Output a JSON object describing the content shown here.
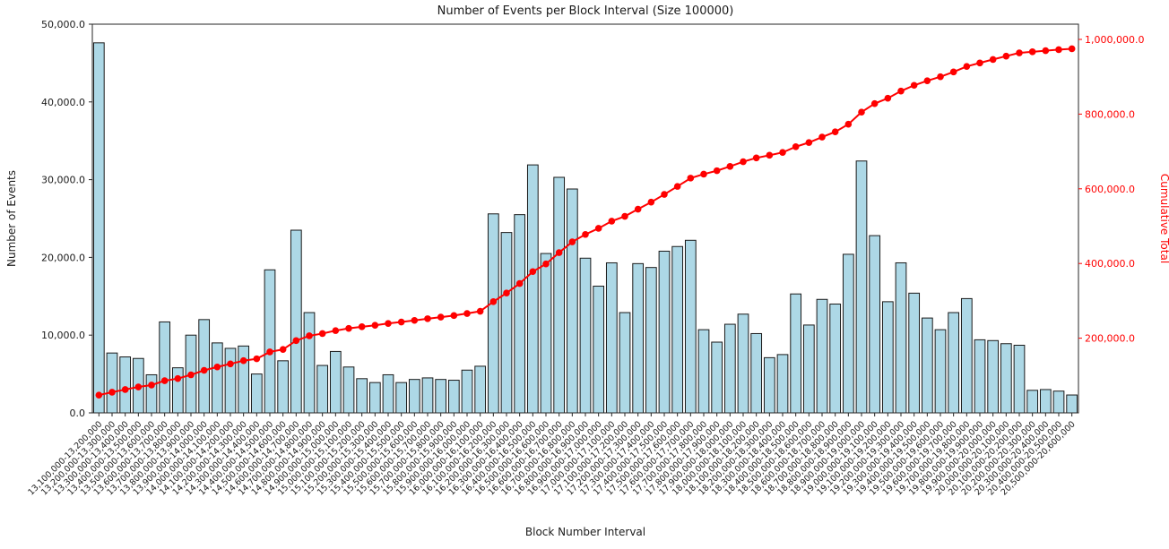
{
  "page": {
    "background": "#ffffff"
  },
  "chart_data": {
    "type": "bar",
    "title": "Number of Events per Block Interval (Size 100000)",
    "xlabel": "Block Number Interval",
    "ylabel_left": "Number of Events",
    "ylabel_right": "Cumulative Total",
    "grid": false,
    "legend": "none",
    "bar_color": "#add8e6",
    "bar_edge_color": "#1a1a1a",
    "line_color": "#ff0000",
    "axes": {
      "left": {
        "range": [
          0,
          50000
        ],
        "tick_values": [
          0,
          10000,
          20000,
          30000,
          40000,
          50000
        ],
        "tick_labels": [
          "0.0",
          "10,000.0",
          "20,000.0",
          "30,000.0",
          "40,000.0",
          "50,000.0"
        ],
        "color": "#1a1a1a"
      },
      "right": {
        "range": [
          0,
          1000000
        ],
        "tick_values": [
          200000,
          400000,
          600000,
          800000,
          1000000
        ],
        "tick_labels": [
          "200,000.0",
          "400,000.0",
          "600,000.0",
          "800,000.0",
          "1,000,000.0"
        ],
        "color": "#ff0000"
      },
      "x_tick_rotation": 45
    },
    "categories": [
      "13,100,000-13,200,000",
      "13,200,000-13,300,000",
      "13,300,000-13,400,000",
      "13,400,000-13,500,000",
      "13,500,000-13,600,000",
      "13,600,000-13,700,000",
      "13,700,000-13,800,000",
      "13,800,000-13,900,000",
      "13,900,000-14,000,000",
      "14,000,000-14,100,000",
      "14,100,000-14,200,000",
      "14,200,000-14,300,000",
      "14,300,000-14,400,000",
      "14,400,000-14,500,000",
      "14,500,000-14,600,000",
      "14,600,000-14,700,000",
      "14,700,000-14,800,000",
      "14,800,000-14,900,000",
      "14,900,000-15,000,000",
      "15,000,000-15,100,000",
      "15,100,000-15,200,000",
      "15,200,000-15,300,000",
      "15,300,000-15,400,000",
      "15,400,000-15,500,000",
      "15,500,000-15,600,000",
      "15,600,000-15,700,000",
      "15,700,000-15,800,000",
      "15,800,000-15,900,000",
      "15,900,000-16,000,000",
      "16,000,000-16,100,000",
      "16,100,000-16,200,000",
      "16,200,000-16,300,000",
      "16,300,000-16,400,000",
      "16,400,000-16,500,000",
      "16,500,000-16,600,000",
      "16,600,000-16,700,000",
      "16,700,000-16,800,000",
      "16,800,000-16,900,000",
      "16,900,000-17,000,000",
      "17,000,000-17,100,000",
      "17,100,000-17,200,000",
      "17,200,000-17,300,000",
      "17,300,000-17,400,000",
      "17,400,000-17,500,000",
      "17,500,000-17,600,000",
      "17,600,000-17,700,000",
      "17,700,000-17,800,000",
      "17,800,000-17,900,000",
      "17,900,000-18,000,000",
      "18,000,000-18,100,000",
      "18,100,000-18,200,000",
      "18,200,000-18,300,000",
      "18,300,000-18,400,000",
      "18,400,000-18,500,000",
      "18,500,000-18,600,000",
      "18,600,000-18,700,000",
      "18,700,000-18,800,000",
      "18,800,000-18,900,000",
      "18,900,000-19,000,000",
      "19,000,000-19,100,000",
      "19,100,000-19,200,000",
      "19,200,000-19,300,000",
      "19,300,000-19,400,000",
      "19,400,000-19,500,000",
      "19,500,000-19,600,000",
      "19,600,000-19,700,000",
      "19,700,000-19,800,000",
      "19,800,000-19,900,000",
      "19,900,000-20,000,000",
      "20,000,000-20,100,000",
      "20,100,000-20,200,000",
      "20,200,000-20,300,000",
      "20,300,000-20,400,000",
      "20,400,000-20,500,000",
      "20,500,000-20,600,000"
    ],
    "series": [
      {
        "name": "Number of Events",
        "type": "bar",
        "color": "#add8e6",
        "values": [
          47600,
          7700,
          7200,
          7000,
          4900,
          11700,
          5800,
          10000,
          12000,
          9000,
          8300,
          8600,
          5000,
          18400,
          6700,
          23500,
          12900,
          6100,
          7900,
          5900,
          4400,
          3900,
          4900,
          3900,
          4300,
          4500,
          4300,
          4200,
          5500,
          6000,
          25600,
          23200,
          25500,
          31900,
          20500,
          30300,
          28800,
          19900,
          16300,
          19300,
          12900,
          19200,
          18700,
          20800,
          21400,
          22200,
          10700,
          9100,
          11400,
          12700,
          10200,
          7100,
          7500,
          15300,
          11300,
          14600,
          14000,
          20400,
          32400,
          22800,
          14300,
          19300,
          15400,
          12200,
          10700,
          12900,
          14700,
          9400,
          9300,
          8900,
          8700,
          2900,
          3000,
          2800,
          2300
        ]
      },
      {
        "name": "Cumulative Total",
        "type": "line",
        "color": "#ff0000",
        "marker": "circle",
        "values": [
          47600,
          55300,
          62500,
          69500,
          74400,
          86100,
          91900,
          101900,
          113900,
          122900,
          131200,
          139800,
          144800,
          163200,
          169900,
          193400,
          206300,
          212400,
          220300,
          226200,
          230600,
          234500,
          239400,
          243300,
          247600,
          252100,
          256400,
          260600,
          266100,
          272100,
          297700,
          320900,
          346400,
          378300,
          398800,
          429100,
          457900,
          477800,
          494100,
          513400,
          526300,
          545500,
          564200,
          585000,
          606400,
          628600,
          639300,
          648400,
          659800,
          672500,
          682700,
          689800,
          697300,
          712600,
          723900,
          738500,
          752500,
          772900,
          805300,
          828100,
          842400,
          861700,
          877100,
          889300,
          900000,
          912900,
          927600,
          937000,
          946300,
          955200,
          963900,
          966800,
          969800,
          972600,
          974900
        ]
      }
    ]
  }
}
